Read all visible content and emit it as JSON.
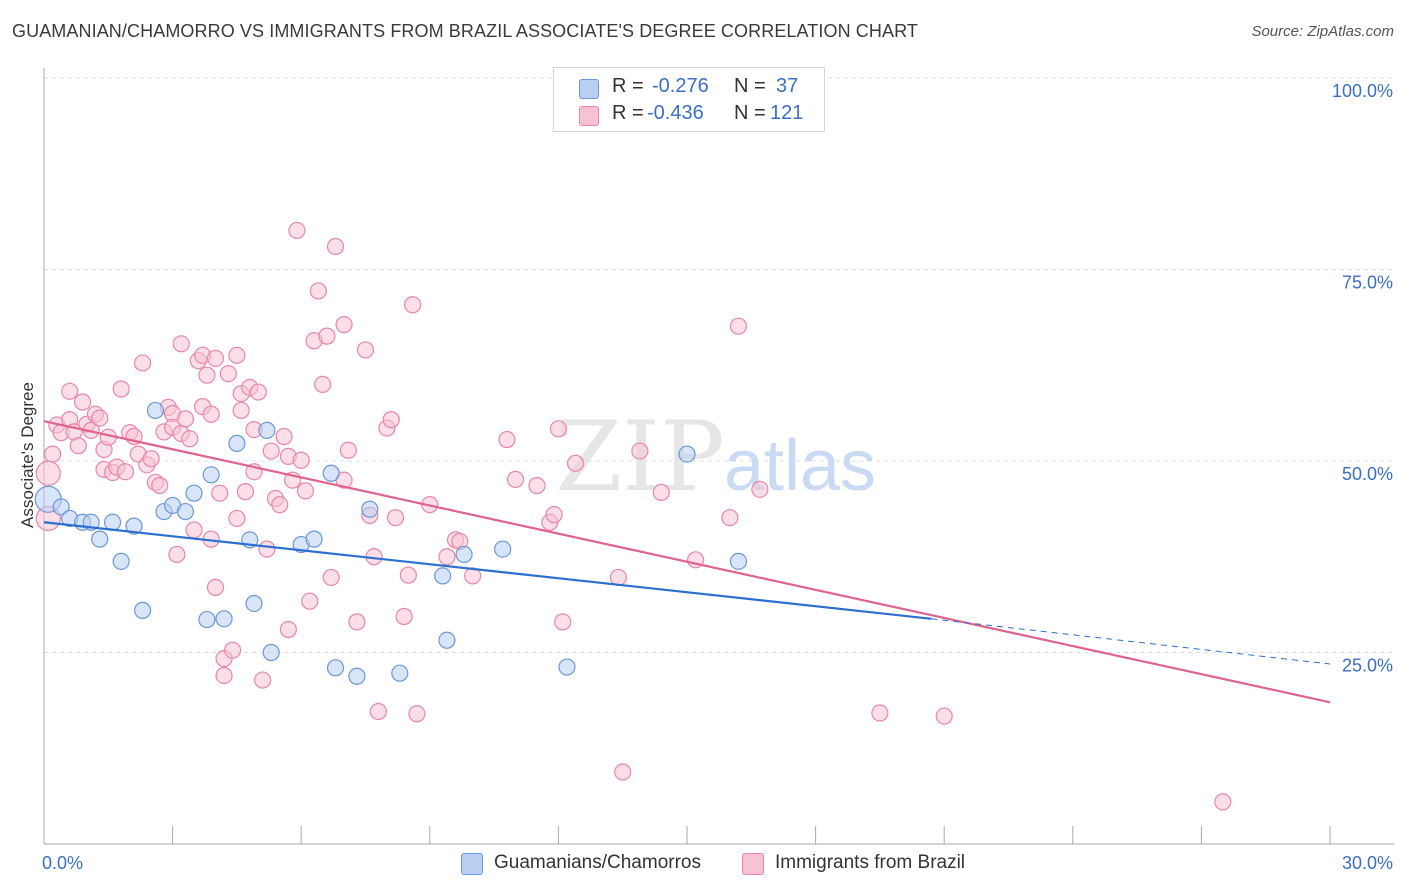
{
  "title": "GUAMANIAN/CHAMORRO VS IMMIGRANTS FROM BRAZIL ASSOCIATE'S DEGREE CORRELATION CHART",
  "source": "Source: ZipAtlas.com",
  "watermark": {
    "zip": "ZIP",
    "atlas": "atlas"
  },
  "legend": {
    "rows": [
      {
        "r_label": "R =",
        "r_value": "-0.276",
        "n_label": "N =",
        "n_value": "37"
      },
      {
        "r_label": "R =",
        "r_value": "-0.436",
        "n_label": "N =",
        "n_value": "121"
      }
    ],
    "bottom": [
      "Guamanians/Chamorros",
      "Immigrants from Brazil"
    ]
  },
  "colors": {
    "blue_fill": "#b8cff2",
    "blue_stroke": "#6b98d8",
    "blue_line": "#2b6fd0",
    "pink_fill": "#f7c3d3",
    "pink_stroke": "#e887a7",
    "pink_line": "#e0638e",
    "axis_label": "#3b6fc4",
    "grid": "#dedede"
  },
  "chart_data": {
    "type": "scatter",
    "title": "GUAMANIAN/CHAMORRO VS IMMIGRANTS FROM BRAZIL ASSOCIATE'S DEGREE CORRELATION CHART",
    "xlabel": "",
    "ylabel": "Associate's Degree",
    "xlim": [
      0,
      30
    ],
    "ylim": [
      0,
      105
    ],
    "x_ticks": [
      "0.0%",
      "30.0%"
    ],
    "y_ticks": [
      {
        "value": 25,
        "label": "25.0%"
      },
      {
        "value": 50,
        "label": "50.0%"
      },
      {
        "value": 75,
        "label": "75.0%"
      },
      {
        "value": 100,
        "label": "100.0%"
      }
    ],
    "grid": true,
    "legend_position": "top-center",
    "series": [
      {
        "name": "Guamanians/Chamorros",
        "color": "#6b98d8",
        "trend": {
          "x": [
            0,
            20.7
          ],
          "y": [
            42.0,
            29.4
          ],
          "dashed_to": [
            30,
            23.5
          ]
        },
        "points": [
          [
            0.1,
            45.0
          ],
          [
            0.4,
            44.0
          ],
          [
            0.6,
            42.5
          ],
          [
            0.9,
            42.0
          ],
          [
            1.1,
            42.0
          ],
          [
            1.3,
            39.8
          ],
          [
            1.6,
            42.0
          ],
          [
            1.8,
            36.9
          ],
          [
            2.1,
            41.5
          ],
          [
            2.3,
            30.5
          ],
          [
            2.6,
            56.6
          ],
          [
            2.8,
            43.4
          ],
          [
            3.0,
            44.2
          ],
          [
            3.3,
            43.4
          ],
          [
            3.5,
            45.8
          ],
          [
            3.8,
            29.3
          ],
          [
            3.9,
            48.2
          ],
          [
            4.2,
            29.4
          ],
          [
            4.5,
            52.3
          ],
          [
            4.8,
            39.7
          ],
          [
            4.9,
            31.4
          ],
          [
            5.2,
            54.0
          ],
          [
            5.3,
            25.0
          ],
          [
            6.0,
            39.1
          ],
          [
            6.3,
            39.8
          ],
          [
            6.7,
            48.4
          ],
          [
            6.8,
            23.0
          ],
          [
            7.3,
            21.9
          ],
          [
            7.6,
            43.7
          ],
          [
            8.3,
            22.3
          ],
          [
            9.3,
            35.0
          ],
          [
            9.4,
            26.6
          ],
          [
            9.8,
            37.8
          ],
          [
            10.7,
            38.5
          ],
          [
            12.2,
            23.1
          ],
          [
            15.0,
            50.9
          ],
          [
            16.2,
            36.9
          ]
        ]
      },
      {
        "name": "Immigrants from Brazil",
        "color": "#e887a7",
        "trend": {
          "x": [
            0,
            30
          ],
          "y": [
            55.2,
            18.5
          ]
        },
        "points": [
          [
            0.1,
            42.5
          ],
          [
            0.1,
            48.4
          ],
          [
            0.2,
            50.9
          ],
          [
            0.3,
            54.7
          ],
          [
            0.4,
            53.7
          ],
          [
            0.6,
            55.4
          ],
          [
            0.6,
            59.1
          ],
          [
            0.7,
            53.8
          ],
          [
            0.8,
            52.0
          ],
          [
            0.9,
            57.7
          ],
          [
            1.0,
            54.8
          ],
          [
            1.1,
            54.0
          ],
          [
            1.2,
            56.1
          ],
          [
            1.3,
            55.6
          ],
          [
            1.4,
            51.5
          ],
          [
            1.4,
            48.9
          ],
          [
            1.5,
            53.1
          ],
          [
            1.6,
            48.5
          ],
          [
            1.7,
            49.2
          ],
          [
            1.8,
            59.4
          ],
          [
            1.9,
            48.6
          ],
          [
            2.0,
            53.7
          ],
          [
            2.1,
            53.2
          ],
          [
            2.2,
            50.9
          ],
          [
            2.3,
            62.8
          ],
          [
            2.4,
            49.5
          ],
          [
            2.5,
            50.3
          ],
          [
            2.6,
            47.2
          ],
          [
            2.7,
            46.8
          ],
          [
            2.8,
            53.8
          ],
          [
            2.9,
            57.0
          ],
          [
            3.0,
            56.2
          ],
          [
            3.0,
            54.4
          ],
          [
            3.1,
            37.8
          ],
          [
            3.2,
            65.3
          ],
          [
            3.2,
            53.6
          ],
          [
            3.3,
            55.5
          ],
          [
            3.4,
            52.9
          ],
          [
            3.5,
            41.0
          ],
          [
            3.6,
            63.1
          ],
          [
            3.7,
            63.8
          ],
          [
            3.7,
            57.1
          ],
          [
            3.8,
            61.2
          ],
          [
            3.9,
            56.1
          ],
          [
            3.9,
            39.8
          ],
          [
            4.0,
            33.5
          ],
          [
            4.0,
            63.4
          ],
          [
            4.1,
            45.8
          ],
          [
            4.2,
            24.2
          ],
          [
            4.2,
            22.0
          ],
          [
            4.3,
            61.4
          ],
          [
            4.4,
            25.3
          ],
          [
            4.5,
            63.8
          ],
          [
            4.5,
            42.5
          ],
          [
            4.6,
            56.6
          ],
          [
            4.6,
            58.8
          ],
          [
            4.7,
            46.0
          ],
          [
            4.8,
            59.6
          ],
          [
            4.9,
            54.1
          ],
          [
            4.9,
            48.6
          ],
          [
            5.0,
            59.0
          ],
          [
            5.1,
            21.4
          ],
          [
            5.2,
            38.5
          ],
          [
            5.3,
            51.3
          ],
          [
            5.4,
            45.1
          ],
          [
            5.5,
            44.3
          ],
          [
            5.6,
            53.2
          ],
          [
            5.7,
            50.6
          ],
          [
            5.7,
            28.0
          ],
          [
            5.8,
            47.5
          ],
          [
            5.9,
            80.1
          ],
          [
            6.0,
            50.1
          ],
          [
            6.1,
            46.1
          ],
          [
            6.2,
            31.7
          ],
          [
            6.3,
            65.7
          ],
          [
            6.4,
            72.2
          ],
          [
            6.5,
            60.0
          ],
          [
            6.6,
            66.3
          ],
          [
            6.7,
            34.8
          ],
          [
            6.8,
            78.0
          ],
          [
            7.0,
            47.5
          ],
          [
            7.0,
            67.8
          ],
          [
            7.1,
            51.4
          ],
          [
            7.3,
            29.0
          ],
          [
            7.5,
            64.5
          ],
          [
            7.6,
            42.9
          ],
          [
            7.7,
            37.5
          ],
          [
            7.8,
            17.3
          ],
          [
            8.0,
            54.3
          ],
          [
            8.1,
            55.4
          ],
          [
            8.2,
            42.6
          ],
          [
            8.4,
            29.7
          ],
          [
            8.5,
            35.1
          ],
          [
            8.6,
            70.4
          ],
          [
            8.7,
            17.0
          ],
          [
            9.0,
            44.3
          ],
          [
            9.4,
            37.5
          ],
          [
            9.6,
            39.7
          ],
          [
            9.7,
            39.5
          ],
          [
            10.0,
            35.0
          ],
          [
            10.8,
            52.8
          ],
          [
            11.0,
            47.6
          ],
          [
            11.5,
            46.8
          ],
          [
            11.8,
            42.0
          ],
          [
            11.9,
            43.0
          ],
          [
            12.0,
            54.2
          ],
          [
            12.1,
            29.0
          ],
          [
            12.4,
            49.7
          ],
          [
            13.4,
            34.8
          ],
          [
            13.5,
            9.4
          ],
          [
            13.9,
            51.3
          ],
          [
            14.4,
            45.9
          ],
          [
            15.2,
            37.1
          ],
          [
            16.0,
            42.6
          ],
          [
            16.2,
            67.6
          ],
          [
            16.7,
            46.3
          ],
          [
            19.5,
            17.1
          ],
          [
            21.0,
            16.7
          ],
          [
            27.5,
            5.5
          ]
        ]
      }
    ]
  }
}
